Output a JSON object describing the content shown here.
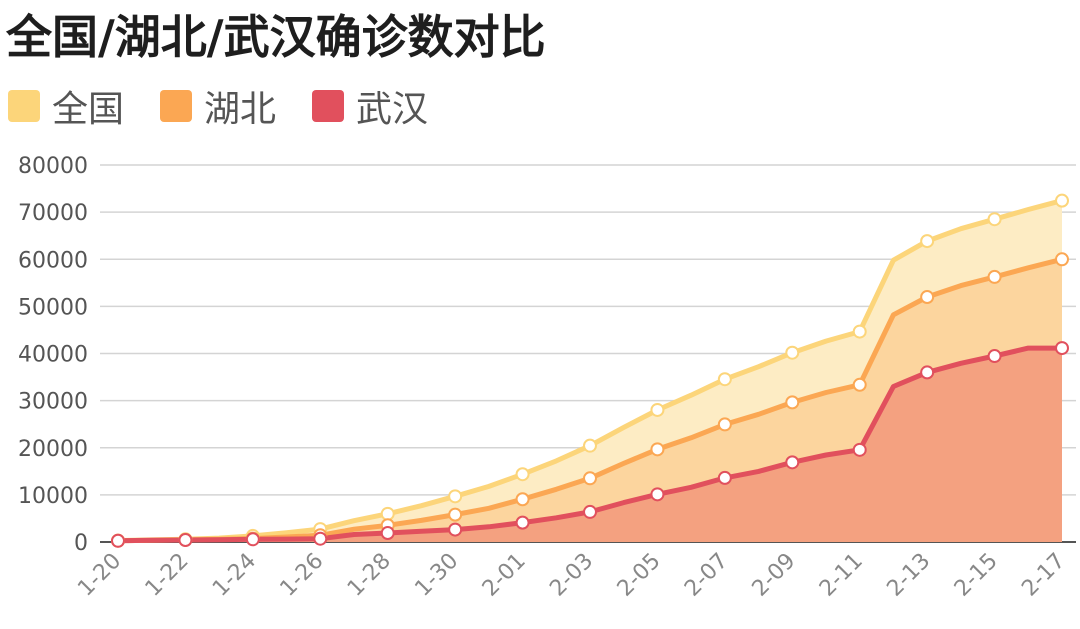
{
  "chart_data": {
    "type": "area",
    "title": "全国/湖北/武汉确诊数对比",
    "legend_position": "top-left",
    "grid": true,
    "ylim": [
      0,
      80000
    ],
    "yticks": [
      "0",
      "10000",
      "20000",
      "30000",
      "40000",
      "50000",
      "60000",
      "70000",
      "80000"
    ],
    "x": [
      "1-20",
      "1-21",
      "1-22",
      "1-23",
      "1-24",
      "1-25",
      "1-26",
      "1-27",
      "1-28",
      "1-29",
      "1-30",
      "1-31",
      "2-01",
      "2-02",
      "2-03",
      "2-04",
      "2-05",
      "2-06",
      "2-07",
      "2-08",
      "2-09",
      "2-10",
      "2-11",
      "2-12",
      "2-13",
      "2-14",
      "2-15",
      "2-16",
      "2-17"
    ],
    "xtick_labels": [
      "1-20",
      "1-22",
      "1-24",
      "1-26",
      "1-28",
      "1-30",
      "2-01",
      "2-03",
      "2-05",
      "2-07",
      "2-09",
      "2-11",
      "2-13",
      "2-15",
      "2-17"
    ],
    "series": [
      {
        "name": "全国",
        "color": "#fcd57a",
        "fill": "#fdecc4",
        "values": [
          291,
          440,
          571,
          830,
          1287,
          1975,
          2744,
          4515,
          5974,
          7711,
          9692,
          11791,
          14380,
          17205,
          20438,
          24324,
          28018,
          31161,
          34546,
          37198,
          40171,
          42638,
          44653,
          59804,
          63851,
          66492,
          68500,
          70548,
          72436
        ]
      },
      {
        "name": "湖北",
        "color": "#fba753",
        "fill": "#fcd59e",
        "values": [
          270,
          375,
          444,
          549,
          729,
          1052,
          1423,
          2714,
          3554,
          4586,
          5806,
          7153,
          9074,
          11177,
          13522,
          16678,
          19665,
          22112,
          24953,
          27100,
          29631,
          31728,
          33366,
          48206,
          51986,
          54406,
          56249,
          58182,
          59989
        ]
      },
      {
        "name": "武汉",
        "color": "#e1505d",
        "fill": "#f4a180",
        "values": [
          258,
          363,
          425,
          495,
          572,
          618,
          698,
          1590,
          1905,
          2261,
          2639,
          3215,
          4109,
          5142,
          6384,
          8351,
          10117,
          11618,
          13603,
          14982,
          16902,
          18454,
          19558,
          32994,
          35991,
          37914,
          39462,
          41152,
          41152
        ]
      }
    ]
  }
}
